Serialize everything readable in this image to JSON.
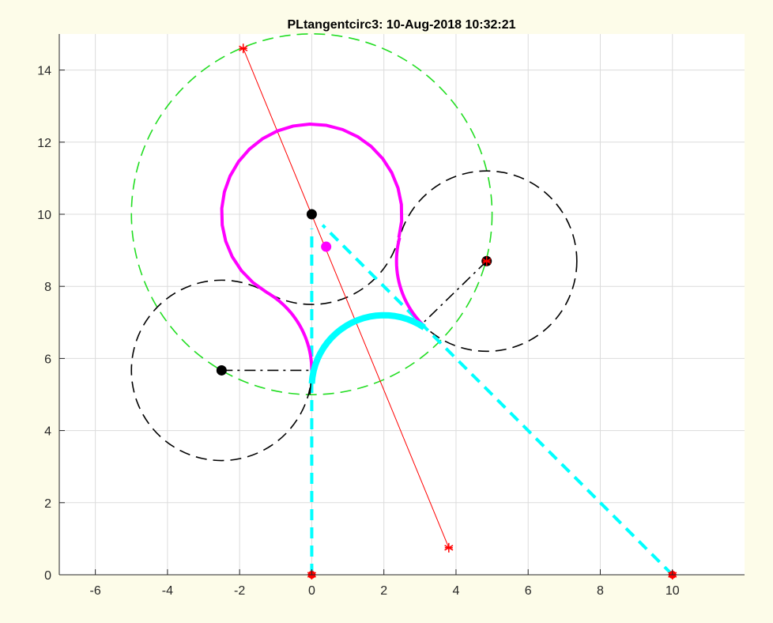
{
  "chart_data": {
    "type": "line",
    "title": "PLtangentcirc3: 10-Aug-2018 10:32:21",
    "xlabel": "",
    "ylabel": "",
    "xlim": [
      -7,
      12
    ],
    "ylim": [
      0,
      15
    ],
    "xticks": [
      -6,
      -4,
      -2,
      0,
      2,
      4,
      6,
      8,
      10
    ],
    "yticks": [
      0,
      2,
      4,
      6,
      8,
      10,
      12,
      14
    ],
    "grid": true,
    "circles": [
      {
        "name": "green-dashed-circle",
        "center": [
          0,
          10
        ],
        "r": 5,
        "color": "#22dd22",
        "dash": "dashed"
      },
      {
        "name": "left-black-circle",
        "center": [
          -2.5,
          5.67
        ],
        "r": 2.5,
        "color": "#000000",
        "dash": "dashed"
      },
      {
        "name": "right-black-circle",
        "center": [
          4.85,
          8.7
        ],
        "r": 2.5,
        "color": "#000000",
        "dash": "dashed"
      },
      {
        "name": "center-black-circle",
        "center": [
          0,
          10
        ],
        "r": 2.5,
        "color": "#000000",
        "dash": "dashed"
      }
    ],
    "arcs": [
      {
        "name": "magenta-path-top",
        "center": [
          0,
          10
        ],
        "r": 2.5,
        "from_deg": 240,
        "to_deg": -15,
        "color": "#ff00ff"
      },
      {
        "name": "magenta-path-left",
        "center": [
          -2.5,
          5.67
        ],
        "r": 2.5,
        "from_deg": 60,
        "to_deg": 0,
        "color": "#ff00ff"
      },
      {
        "name": "magenta-path-right",
        "center": [
          4.85,
          8.7
        ],
        "r": 2.5,
        "from_deg": 165,
        "to_deg": 226,
        "color": "#ff00ff"
      },
      {
        "name": "cyan-arc",
        "center": [
          2,
          5.2
        ],
        "r": 2,
        "from_deg": 177,
        "to_deg": 56,
        "color": "#00ffff"
      }
    ],
    "lines": [
      {
        "name": "red-line",
        "points": [
          [
            -1.9,
            14.6
          ],
          [
            3.8,
            0.75
          ]
        ],
        "color": "#ff0000",
        "style": "solid"
      },
      {
        "name": "cyan-dashed-vertical",
        "points": [
          [
            0,
            0
          ],
          [
            0,
            9.6
          ]
        ],
        "color": "#00ffff",
        "style": "dashed"
      },
      {
        "name": "cyan-dashed-diagonal",
        "points": [
          [
            10,
            0
          ],
          [
            0.3,
            9.7
          ]
        ],
        "color": "#00ffff",
        "style": "dashed"
      },
      {
        "name": "left-dashdot-radius",
        "points": [
          [
            -2.5,
            5.67
          ],
          [
            0,
            5.67
          ]
        ],
        "color": "#000000",
        "style": "dashdot"
      },
      {
        "name": "right-dashdot-radius",
        "points": [
          [
            4.85,
            8.7
          ],
          [
            3.05,
            6.95
          ]
        ],
        "color": "#000000",
        "style": "dashdot"
      },
      {
        "name": "black-short-segment",
        "points": [
          [
            0,
            5.67
          ],
          [
            -0.05,
            5.0
          ]
        ],
        "color": "#000000",
        "style": "solid"
      }
    ],
    "markers": [
      {
        "name": "center-marker",
        "x": 0,
        "y": 10,
        "type": "octagon",
        "color": "#000000"
      },
      {
        "name": "left-center-marker",
        "x": -2.5,
        "y": 5.67,
        "type": "octagon",
        "color": "#000000"
      },
      {
        "name": "right-center-marker",
        "x": 4.85,
        "y": 8.7,
        "type": "octagon-star",
        "color": "#000000"
      },
      {
        "name": "magenta-dot",
        "x": 0.4,
        "y": 9.1,
        "type": "dot",
        "color": "#ff00ff"
      },
      {
        "name": "red-star-top",
        "x": -1.9,
        "y": 14.6,
        "type": "star",
        "color": "#ff0000"
      },
      {
        "name": "red-star-bottom",
        "x": 3.8,
        "y": 0.75,
        "type": "star",
        "color": "#ff0000"
      },
      {
        "name": "origin-marker",
        "x": 0,
        "y": 0,
        "type": "circle-star",
        "color": "#ff0000"
      },
      {
        "name": "goal-marker",
        "x": 10,
        "y": 0,
        "type": "circle-star",
        "color": "#ff0000"
      }
    ]
  }
}
